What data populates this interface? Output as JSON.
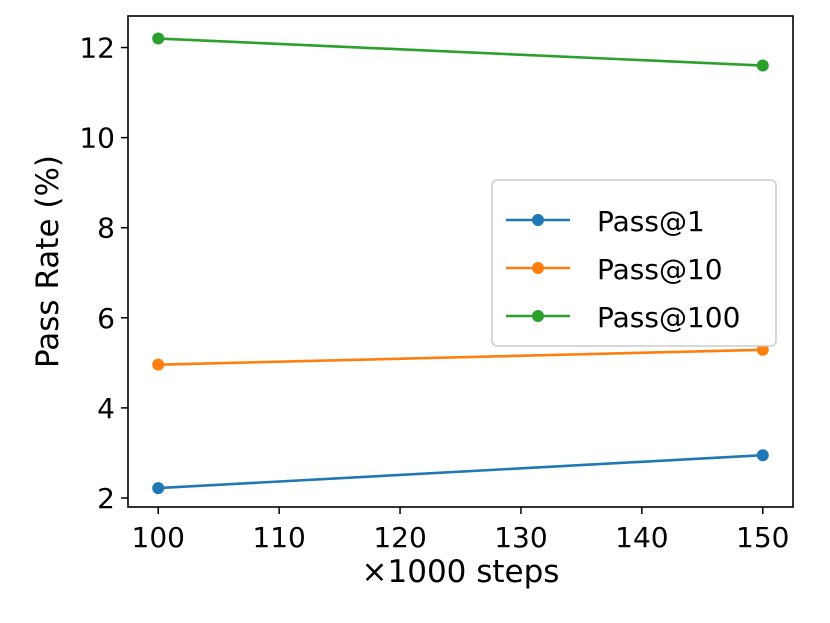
{
  "chart_data": {
    "type": "line",
    "xlabel": "×1000 steps",
    "ylabel": "Pass Rate (%)",
    "xlim": [
      97.5,
      152.5
    ],
    "ylim": [
      1.8,
      12.7
    ],
    "x_ticks": [
      100,
      110,
      120,
      130,
      140,
      150
    ],
    "y_ticks": [
      2,
      4,
      6,
      8,
      10,
      12
    ],
    "grid": false,
    "legend_position": "center-right",
    "x": [
      100,
      150
    ],
    "series": [
      {
        "name": "Pass@1",
        "color": "#1f77b4",
        "values": [
          2.22,
          2.95
        ]
      },
      {
        "name": "Pass@10",
        "color": "#ff7f0e",
        "values": [
          4.96,
          5.29
        ]
      },
      {
        "name": "Pass@100",
        "color": "#2ca02c",
        "values": [
          12.2,
          11.6
        ]
      }
    ]
  }
}
